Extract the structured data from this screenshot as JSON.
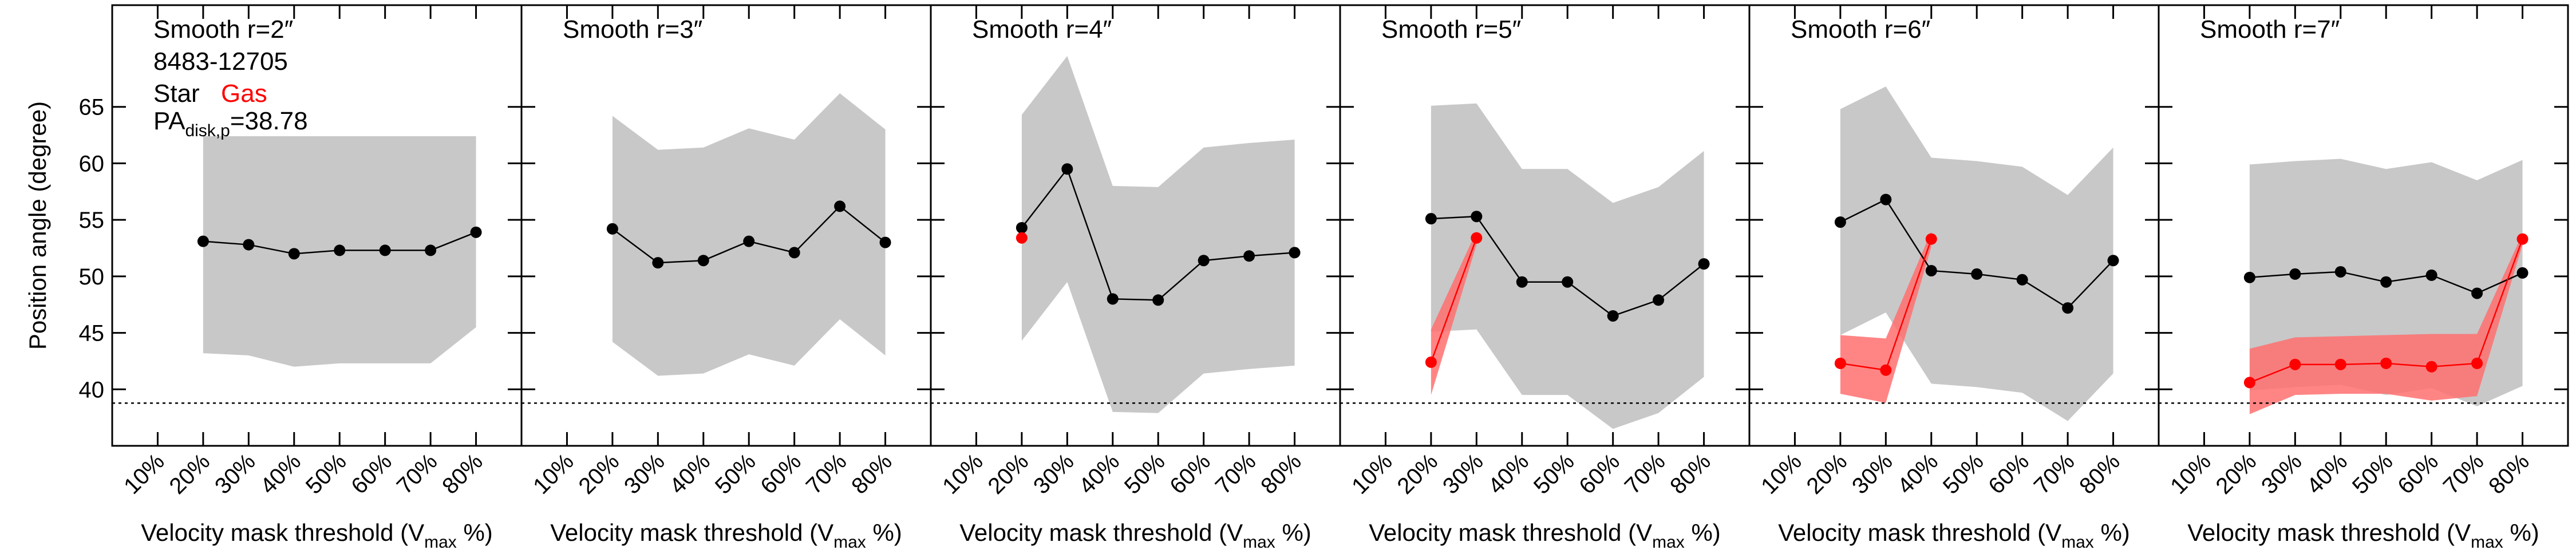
{
  "chart_data": [
    {
      "type": "line",
      "title": "Smooth r=2″",
      "subtitle": "8483-12705",
      "ylabel": "Position angle (degree)",
      "ytick_labels": true,
      "legend": true,
      "xlabel": {
        "text": "Velocity mask threshold (V",
        "sub": "max",
        "tail": " %)"
      },
      "reference": {
        "label": "PA",
        "sub": "disk,p",
        "value": 38.78,
        "value_label": "=38.78"
      },
      "xlim": [
        0,
        90
      ],
      "ylim": [
        35,
        74
      ],
      "xticks": [
        {
          "value": 10,
          "label": "10%"
        },
        {
          "value": 20,
          "label": "20%"
        },
        {
          "value": 30,
          "label": "30%"
        },
        {
          "value": 40,
          "label": "40%"
        },
        {
          "value": 50,
          "label": "50%"
        },
        {
          "value": 60,
          "label": "60%"
        },
        {
          "value": 70,
          "label": "70%"
        },
        {
          "value": 80,
          "label": "80%"
        }
      ],
      "yticks": [
        40,
        45,
        50,
        55,
        60,
        65
      ],
      "x": [
        20,
        30,
        40,
        50,
        60,
        70,
        80
      ],
      "series": [
        {
          "name": "Star",
          "color": "#000000",
          "band_color": "#c8c8c8",
          "values": [
            53.1,
            52.8,
            52.0,
            52.3,
            52.3,
            52.3,
            53.9
          ],
          "lower": [
            43.2,
            43.0,
            42.0,
            42.3,
            42.3,
            42.3,
            45.5
          ],
          "upper": [
            62.4,
            62.4,
            62.4,
            62.4,
            62.4,
            62.4,
            62.4
          ]
        },
        {
          "name": "Gas",
          "color": "#ff0000",
          "band_color": "#ff7070",
          "values": [
            null,
            null,
            null,
            null,
            null,
            null,
            null
          ],
          "lower": [
            null,
            null,
            null,
            null,
            null,
            null,
            null
          ],
          "upper": [
            null,
            null,
            null,
            null,
            null,
            null,
            null
          ]
        }
      ]
    },
    {
      "type": "line",
      "title": "Smooth r=3″",
      "ytick_labels": false,
      "legend": false,
      "xlabel": {
        "text": "Velocity mask threshold (V",
        "sub": "max",
        "tail": " %)"
      },
      "reference": {
        "value": 38.78
      },
      "xlim": [
        0,
        90
      ],
      "ylim": [
        35,
        74
      ],
      "xticks": [
        {
          "value": 10,
          "label": "10%"
        },
        {
          "value": 20,
          "label": "20%"
        },
        {
          "value": 30,
          "label": "30%"
        },
        {
          "value": 40,
          "label": "40%"
        },
        {
          "value": 50,
          "label": "50%"
        },
        {
          "value": 60,
          "label": "60%"
        },
        {
          "value": 70,
          "label": "70%"
        },
        {
          "value": 80,
          "label": "80%"
        }
      ],
      "yticks": [
        40,
        45,
        50,
        55,
        60,
        65
      ],
      "x": [
        20,
        30,
        40,
        50,
        60,
        70,
        80
      ],
      "series": [
        {
          "name": "Star",
          "color": "#000000",
          "band_color": "#c8c8c8",
          "values": [
            54.2,
            51.2,
            51.4,
            53.1,
            52.1,
            56.2,
            53.0
          ],
          "lower": [
            44.2,
            41.2,
            41.4,
            43.1,
            42.1,
            46.2,
            43.0
          ],
          "upper": [
            64.2,
            61.2,
            61.4,
            63.1,
            62.1,
            66.2,
            63.0
          ]
        },
        {
          "name": "Gas",
          "color": "#ff0000",
          "band_color": "#ff7070",
          "values": [
            null,
            null,
            null,
            null,
            null,
            null,
            null
          ],
          "lower": [
            null,
            null,
            null,
            null,
            null,
            null,
            null
          ],
          "upper": [
            null,
            null,
            null,
            null,
            null,
            null,
            null
          ]
        }
      ]
    },
    {
      "type": "line",
      "title": "Smooth r=4″",
      "ytick_labels": false,
      "legend": false,
      "xlabel": {
        "text": "Velocity mask threshold (V",
        "sub": "max",
        "tail": " %)"
      },
      "reference": {
        "value": 38.78
      },
      "xlim": [
        0,
        90
      ],
      "ylim": [
        35,
        74
      ],
      "xticks": [
        {
          "value": 10,
          "label": "10%"
        },
        {
          "value": 20,
          "label": "20%"
        },
        {
          "value": 30,
          "label": "30%"
        },
        {
          "value": 40,
          "label": "40%"
        },
        {
          "value": 50,
          "label": "50%"
        },
        {
          "value": 60,
          "label": "60%"
        },
        {
          "value": 70,
          "label": "70%"
        },
        {
          "value": 80,
          "label": "80%"
        }
      ],
      "yticks": [
        40,
        45,
        50,
        55,
        60,
        65
      ],
      "x": [
        20,
        30,
        40,
        50,
        60,
        70,
        80
      ],
      "series": [
        {
          "name": "Star",
          "color": "#000000",
          "band_color": "#c8c8c8",
          "values": [
            54.3,
            59.5,
            48.0,
            47.9,
            51.4,
            51.8,
            52.1
          ],
          "lower": [
            44.3,
            49.5,
            38.0,
            37.9,
            41.4,
            41.8,
            42.1
          ],
          "upper": [
            64.3,
            69.5,
            58.0,
            57.9,
            61.4,
            61.8,
            62.1
          ]
        },
        {
          "name": "Gas",
          "color": "#ff0000",
          "band_color": "#ff7070",
          "values": [
            53.4,
            null,
            null,
            null,
            null,
            null,
            null
          ],
          "lower": [
            null,
            null,
            null,
            null,
            null,
            null,
            null
          ],
          "upper": [
            null,
            null,
            null,
            null,
            null,
            null,
            null
          ]
        }
      ]
    },
    {
      "type": "line",
      "title": "Smooth r=5″",
      "ytick_labels": false,
      "legend": false,
      "xlabel": {
        "text": "Velocity mask threshold (V",
        "sub": "max",
        "tail": " %)"
      },
      "reference": {
        "value": 38.78
      },
      "xlim": [
        0,
        90
      ],
      "ylim": [
        35,
        74
      ],
      "xticks": [
        {
          "value": 10,
          "label": "10%"
        },
        {
          "value": 20,
          "label": "20%"
        },
        {
          "value": 30,
          "label": "30%"
        },
        {
          "value": 40,
          "label": "40%"
        },
        {
          "value": 50,
          "label": "50%"
        },
        {
          "value": 60,
          "label": "60%"
        },
        {
          "value": 70,
          "label": "70%"
        },
        {
          "value": 80,
          "label": "80%"
        }
      ],
      "yticks": [
        40,
        45,
        50,
        55,
        60,
        65
      ],
      "x": [
        20,
        30,
        40,
        50,
        60,
        70,
        80
      ],
      "series": [
        {
          "name": "Star",
          "color": "#000000",
          "band_color": "#c8c8c8",
          "values": [
            55.1,
            55.3,
            49.5,
            49.5,
            46.5,
            47.9,
            51.1
          ],
          "lower": [
            45.1,
            45.3,
            39.5,
            39.5,
            36.5,
            37.9,
            41.1
          ],
          "upper": [
            65.1,
            65.3,
            59.5,
            59.5,
            56.5,
            57.9,
            61.1
          ]
        },
        {
          "name": "Gas",
          "color": "#ff0000",
          "band_color": "#ff7070",
          "values": [
            42.4,
            53.4,
            null,
            null,
            null,
            null,
            null
          ],
          "lower": [
            39.5,
            52.8,
            null,
            null,
            null,
            null,
            null
          ],
          "upper": [
            45.3,
            54.0,
            null,
            null,
            null,
            null,
            null
          ]
        }
      ]
    },
    {
      "type": "line",
      "title": "Smooth r=6″",
      "ytick_labels": false,
      "legend": false,
      "xlabel": {
        "text": "Velocity mask threshold (V",
        "sub": "max",
        "tail": " %)"
      },
      "reference": {
        "value": 38.78
      },
      "xlim": [
        0,
        90
      ],
      "ylim": [
        35,
        74
      ],
      "xticks": [
        {
          "value": 10,
          "label": "10%"
        },
        {
          "value": 20,
          "label": "20%"
        },
        {
          "value": 30,
          "label": "30%"
        },
        {
          "value": 40,
          "label": "40%"
        },
        {
          "value": 50,
          "label": "50%"
        },
        {
          "value": 60,
          "label": "60%"
        },
        {
          "value": 70,
          "label": "70%"
        },
        {
          "value": 80,
          "label": "80%"
        }
      ],
      "yticks": [
        40,
        45,
        50,
        55,
        60,
        65
      ],
      "x": [
        20,
        30,
        40,
        50,
        60,
        70,
        80
      ],
      "series": [
        {
          "name": "Star",
          "color": "#000000",
          "band_color": "#c8c8c8",
          "values": [
            54.8,
            56.8,
            50.5,
            50.2,
            49.7,
            47.2,
            51.4
          ],
          "lower": [
            44.8,
            46.8,
            40.5,
            40.2,
            39.7,
            37.2,
            41.4
          ],
          "upper": [
            64.8,
            66.8,
            60.5,
            60.2,
            59.7,
            57.2,
            61.4
          ]
        },
        {
          "name": "Gas",
          "color": "#ff0000",
          "band_color": "#ff7070",
          "values": [
            42.3,
            41.7,
            53.3,
            null,
            null,
            null,
            null
          ],
          "lower": [
            39.6,
            38.8,
            52.6,
            null,
            null,
            null,
            null
          ],
          "upper": [
            44.8,
            44.5,
            54.0,
            null,
            null,
            null,
            null
          ]
        }
      ]
    },
    {
      "type": "line",
      "title": "Smooth r=7″",
      "ytick_labels": false,
      "legend": false,
      "xlabel": {
        "text": "Velocity mask threshold (V",
        "sub": "max",
        "tail": " %)"
      },
      "reference": {
        "value": 38.78
      },
      "xlim": [
        0,
        90
      ],
      "ylim": [
        35,
        74
      ],
      "xticks": [
        {
          "value": 10,
          "label": "10%"
        },
        {
          "value": 20,
          "label": "20%"
        },
        {
          "value": 30,
          "label": "30%"
        },
        {
          "value": 40,
          "label": "40%"
        },
        {
          "value": 50,
          "label": "50%"
        },
        {
          "value": 60,
          "label": "60%"
        },
        {
          "value": 70,
          "label": "70%"
        },
        {
          "value": 80,
          "label": "80%"
        }
      ],
      "yticks": [
        40,
        45,
        50,
        55,
        60,
        65
      ],
      "x": [
        20,
        30,
        40,
        50,
        60,
        70,
        80
      ],
      "series": [
        {
          "name": "Star",
          "color": "#000000",
          "band_color": "#c8c8c8",
          "values": [
            49.9,
            50.2,
            50.4,
            49.5,
            50.1,
            48.5,
            50.3
          ],
          "lower": [
            39.9,
            40.2,
            40.4,
            39.5,
            40.1,
            38.5,
            40.3
          ],
          "upper": [
            59.9,
            60.2,
            60.4,
            59.5,
            60.1,
            58.5,
            60.3
          ]
        },
        {
          "name": "Gas",
          "color": "#ff0000",
          "band_color": "#ff7070",
          "values": [
            40.6,
            42.2,
            42.2,
            42.3,
            42.0,
            42.3,
            53.3
          ],
          "lower": [
            37.8,
            39.5,
            39.6,
            39.6,
            39.0,
            39.4,
            52.8
          ],
          "upper": [
            43.6,
            44.6,
            44.7,
            44.8,
            44.9,
            44.9,
            53.8
          ]
        }
      ]
    }
  ]
}
